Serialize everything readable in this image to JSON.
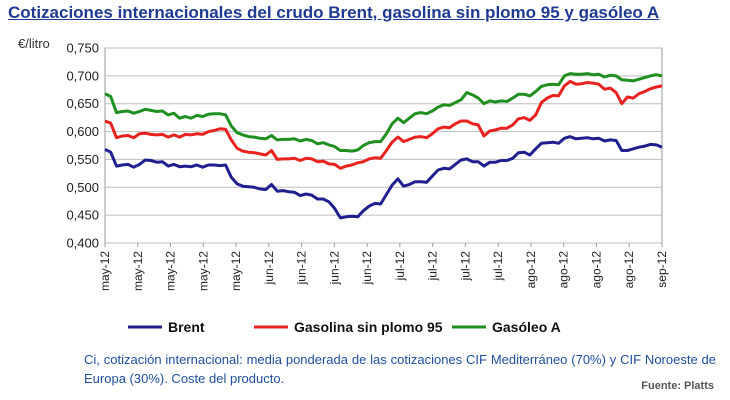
{
  "colors": {
    "brent": "#1f1f8f",
    "gasolina": "#e8231f",
    "gasoleo": "#1f8f1f",
    "title": "#1f3a93",
    "note": "#1f4fa0"
  },
  "title": "Cotizaciones internacionales del crudo Brent, gasolina sin plomo 95 y gasóleo A",
  "unit_label": "€/litro",
  "note": "Ci, cotización internacional: media ponderada de las cotizaciones CIF Mediterráneo (70%) y CIF Noroeste de Europa (30%). Coste del producto.",
  "source": "Fuente: Platts",
  "chart_data": {
    "type": "line",
    "ylim": [
      0.4,
      0.75
    ],
    "yticks": [
      "0,400",
      "0,450",
      "0,500",
      "0,550",
      "0,600",
      "0,650",
      "0,700",
      "0,750"
    ],
    "ytick_values": [
      0.4,
      0.45,
      0.5,
      0.55,
      0.6,
      0.65,
      0.7,
      0.75
    ],
    "xticks": [
      "may-12",
      "may-12",
      "may-12",
      "may-12",
      "may-12",
      "jun-12",
      "jun-12",
      "jun-12",
      "jun-12",
      "jul-12",
      "jul-12",
      "jul-12",
      "jul-12",
      "ago-12",
      "ago-12",
      "ago-12",
      "ago-12",
      "sep-12"
    ],
    "grid": true,
    "legend": "bottom",
    "series": [
      {
        "name": "Brent",
        "values": [
          0.568,
          0.563,
          0.538,
          0.54,
          0.541,
          0.536,
          0.541,
          0.549,
          0.548,
          0.545,
          0.546,
          0.538,
          0.541,
          0.537,
          0.538,
          0.537,
          0.54,
          0.536,
          0.54,
          0.54,
          0.539,
          0.54,
          0.518,
          0.506,
          0.502,
          0.501,
          0.5,
          0.497,
          0.496,
          0.505,
          0.493,
          0.494,
          0.492,
          0.491,
          0.485,
          0.488,
          0.486,
          0.479,
          0.479,
          0.474,
          0.462,
          0.445,
          0.447,
          0.448,
          0.447,
          0.458,
          0.466,
          0.471,
          0.47,
          0.487,
          0.504,
          0.515,
          0.502,
          0.505,
          0.51,
          0.51,
          0.509,
          0.52,
          0.531,
          0.534,
          0.533,
          0.541,
          0.549,
          0.551,
          0.546,
          0.546,
          0.538,
          0.545,
          0.545,
          0.548,
          0.548,
          0.552,
          0.562,
          0.563,
          0.558,
          0.569,
          0.579,
          0.58,
          0.581,
          0.579,
          0.588,
          0.591,
          0.587,
          0.588,
          0.589,
          0.587,
          0.588,
          0.583,
          0.585,
          0.584,
          0.566,
          0.566,
          0.569,
          0.572,
          0.574,
          0.577,
          0.576,
          0.572
        ]
      },
      {
        "name": "Gasolina sin plomo 95",
        "values": [
          0.619,
          0.615,
          0.589,
          0.592,
          0.593,
          0.589,
          0.596,
          0.597,
          0.595,
          0.594,
          0.595,
          0.59,
          0.594,
          0.59,
          0.595,
          0.594,
          0.596,
          0.595,
          0.6,
          0.602,
          0.605,
          0.604,
          0.585,
          0.57,
          0.565,
          0.563,
          0.562,
          0.56,
          0.558,
          0.566,
          0.55,
          0.551,
          0.551,
          0.552,
          0.548,
          0.552,
          0.551,
          0.546,
          0.547,
          0.542,
          0.541,
          0.534,
          0.538,
          0.54,
          0.544,
          0.546,
          0.551,
          0.553,
          0.552,
          0.566,
          0.581,
          0.59,
          0.582,
          0.586,
          0.59,
          0.591,
          0.589,
          0.596,
          0.605,
          0.608,
          0.607,
          0.614,
          0.619,
          0.619,
          0.614,
          0.612,
          0.592,
          0.601,
          0.603,
          0.606,
          0.606,
          0.612,
          0.623,
          0.625,
          0.62,
          0.63,
          0.652,
          0.66,
          0.665,
          0.664,
          0.682,
          0.69,
          0.685,
          0.686,
          0.688,
          0.687,
          0.685,
          0.676,
          0.678,
          0.67,
          0.65,
          0.662,
          0.66,
          0.668,
          0.672,
          0.677,
          0.68,
          0.682
        ]
      },
      {
        "name": "Gasóleo A",
        "values": [
          0.668,
          0.663,
          0.634,
          0.636,
          0.637,
          0.633,
          0.636,
          0.64,
          0.638,
          0.636,
          0.637,
          0.63,
          0.633,
          0.624,
          0.627,
          0.624,
          0.629,
          0.627,
          0.631,
          0.632,
          0.632,
          0.63,
          0.61,
          0.598,
          0.594,
          0.591,
          0.59,
          0.588,
          0.587,
          0.593,
          0.585,
          0.586,
          0.586,
          0.587,
          0.583,
          0.586,
          0.584,
          0.578,
          0.58,
          0.576,
          0.573,
          0.566,
          0.566,
          0.565,
          0.567,
          0.575,
          0.58,
          0.582,
          0.582,
          0.596,
          0.614,
          0.624,
          0.616,
          0.624,
          0.632,
          0.634,
          0.632,
          0.637,
          0.644,
          0.648,
          0.647,
          0.652,
          0.657,
          0.67,
          0.666,
          0.66,
          0.65,
          0.655,
          0.653,
          0.655,
          0.654,
          0.66,
          0.667,
          0.667,
          0.664,
          0.672,
          0.681,
          0.684,
          0.685,
          0.684,
          0.7,
          0.704,
          0.703,
          0.703,
          0.704,
          0.702,
          0.703,
          0.698,
          0.701,
          0.7,
          0.693,
          0.692,
          0.691,
          0.694,
          0.697,
          0.7,
          0.702,
          0.7
        ]
      }
    ]
  }
}
